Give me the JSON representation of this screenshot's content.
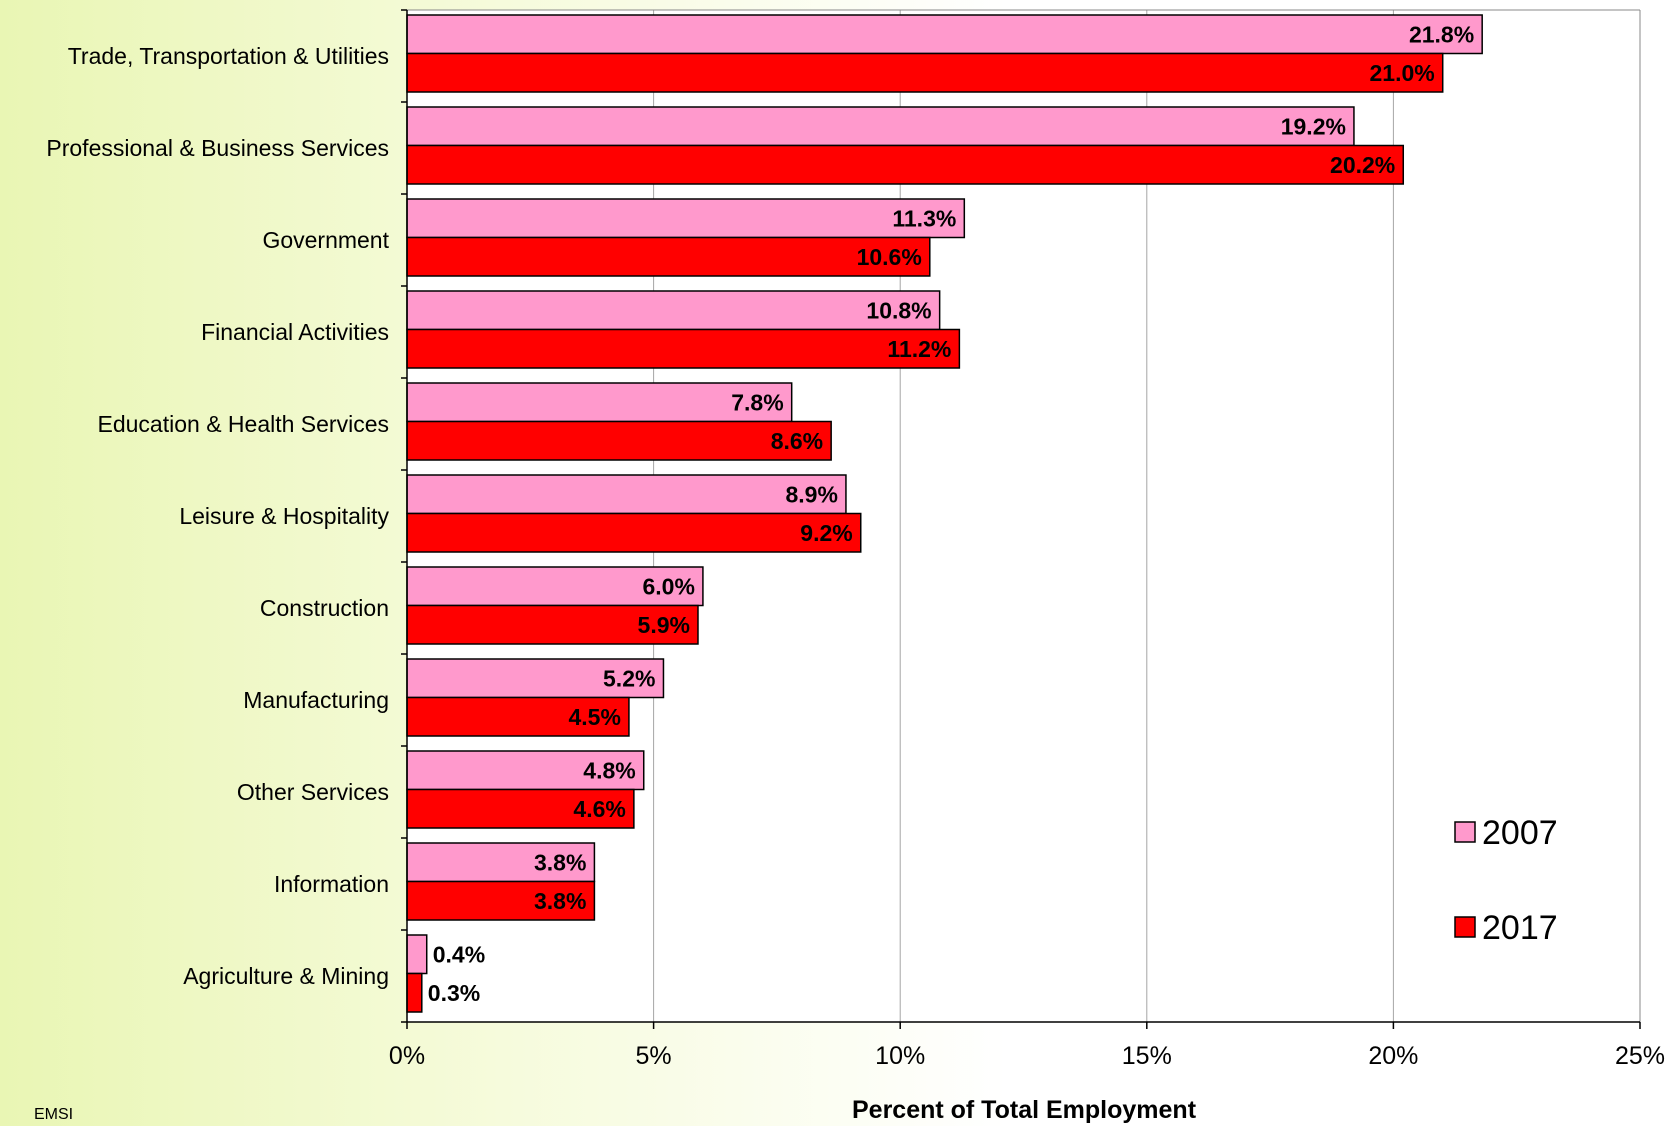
{
  "chart_data": {
    "type": "bar",
    "orientation": "horizontal",
    "title": "",
    "xlabel": "Percent of Total Employment",
    "ylabel": "",
    "categories": [
      "Trade, Transportation & Utilities",
      "Professional & Business Services",
      "Government",
      "Financial Activities",
      "Education & Health Services",
      "Leisure & Hospitality",
      "Construction",
      "Manufacturing",
      "Other Services",
      "Information",
      "Agriculture & Mining"
    ],
    "series": [
      {
        "name": "2007",
        "color": "#ff99cc",
        "values": [
          21.8,
          19.2,
          11.3,
          10.8,
          7.8,
          8.9,
          6.0,
          5.2,
          4.8,
          3.8,
          0.4
        ],
        "labels": [
          "21.8%",
          "19.2%",
          "11.3%",
          "10.8%",
          "7.8%",
          "8.9%",
          "6.0%",
          "5.2%",
          "4.8%",
          "3.8%",
          "0.4%"
        ]
      },
      {
        "name": "2017",
        "color": "#ff0000",
        "values": [
          21.0,
          20.2,
          10.6,
          11.2,
          8.6,
          9.2,
          5.9,
          4.5,
          4.6,
          3.8,
          0.3
        ],
        "labels": [
          "21.0%",
          "20.2%",
          "10.6%",
          "11.2%",
          "8.6%",
          "9.2%",
          "5.9%",
          "4.5%",
          "4.6%",
          "3.8%",
          "0.3%"
        ]
      }
    ],
    "xlim": [
      0,
      25
    ],
    "xticks": [
      0,
      5,
      10,
      15,
      20,
      25
    ],
    "xtick_labels": [
      "0%",
      "5%",
      "10%",
      "15%",
      "20%",
      "25%"
    ],
    "grid": true,
    "legend": "bottom-right",
    "footer_note": "EMSI"
  }
}
